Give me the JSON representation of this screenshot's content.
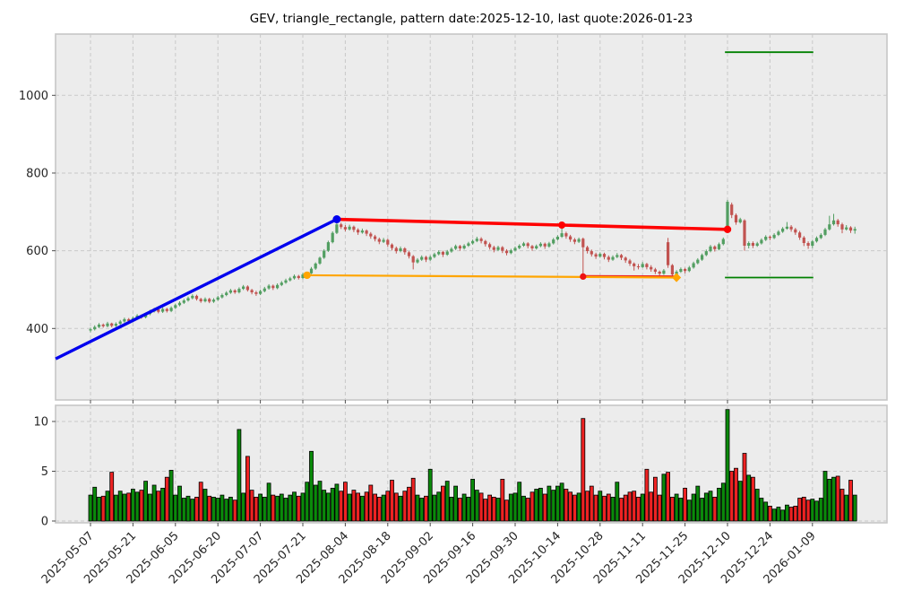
{
  "title": "GEV, triangle_rectangle, pattern date:2025-12-10, last quote:2026-01-23",
  "chart_data": {
    "type": "candlestick_with_volume",
    "symbol": "GEV",
    "pattern": "triangle_rectangle",
    "pattern_date": "2025-12-10",
    "last_quote_date": "2026-01-23",
    "x_axis": {
      "tick_days": [
        0,
        10,
        20,
        30,
        40,
        50,
        60,
        70,
        80,
        90,
        100,
        110,
        120,
        130,
        140,
        150,
        160,
        170
      ],
      "tick_labels": [
        "2025-05-07",
        "2025-05-21",
        "2025-06-05",
        "2025-06-20",
        "2025-07-07",
        "2025-07-21",
        "2025-08-04",
        "2025-08-18",
        "2025-09-02",
        "2025-09-16",
        "2025-09-30",
        "2025-10-14",
        "2025-10-28",
        "2025-11-11",
        "2025-11-25",
        "2025-12-10",
        "2025-12-24",
        "2026-01-09"
      ]
    },
    "price_axis": {
      "ticks": [
        400,
        600,
        800,
        1000
      ],
      "ylim": [
        215,
        1157
      ]
    },
    "volume_axis": {
      "ticks": [
        0,
        5,
        10
      ],
      "ylim": [
        0,
        11.8
      ]
    },
    "candles": [
      [
        395,
        402,
        390,
        398
      ],
      [
        398,
        408,
        395,
        404
      ],
      [
        404,
        414,
        401,
        410
      ],
      [
        410,
        413,
        402,
        406
      ],
      [
        406,
        417,
        403,
        413
      ],
      [
        413,
        415,
        403,
        407
      ],
      [
        407,
        416,
        404,
        412
      ],
      [
        412,
        422,
        409,
        418
      ],
      [
        418,
        428,
        415,
        424
      ],
      [
        424,
        427,
        415,
        419
      ],
      [
        419,
        431,
        416,
        427
      ],
      [
        427,
        437,
        424,
        433
      ],
      [
        433,
        436,
        425,
        429
      ],
      [
        429,
        441,
        426,
        437
      ],
      [
        437,
        448,
        434,
        444
      ],
      [
        444,
        453,
        441,
        449
      ],
      [
        449,
        452,
        439,
        443
      ],
      [
        443,
        454,
        440,
        450
      ],
      [
        450,
        453,
        441,
        445
      ],
      [
        445,
        457,
        442,
        453
      ],
      [
        453,
        464,
        450,
        460
      ],
      [
        460,
        470,
        457,
        466
      ],
      [
        466,
        476,
        463,
        472
      ],
      [
        472,
        482,
        469,
        478
      ],
      [
        478,
        488,
        475,
        484
      ],
      [
        484,
        487,
        472,
        476
      ],
      [
        476,
        479,
        466,
        470
      ],
      [
        470,
        480,
        467,
        476
      ],
      [
        476,
        479,
        465,
        469
      ],
      [
        469,
        478,
        466,
        474
      ],
      [
        474,
        484,
        471,
        480
      ],
      [
        480,
        490,
        477,
        486
      ],
      [
        486,
        496,
        483,
        492
      ],
      [
        492,
        502,
        489,
        498
      ],
      [
        498,
        501,
        489,
        493
      ],
      [
        493,
        506,
        490,
        502
      ],
      [
        502,
        512,
        499,
        508
      ],
      [
        508,
        511,
        495,
        499
      ],
      [
        499,
        502,
        488,
        493
      ],
      [
        493,
        497,
        484,
        489
      ],
      [
        489,
        500,
        486,
        496
      ],
      [
        496,
        507,
        493,
        503
      ],
      [
        503,
        514,
        500,
        510
      ],
      [
        510,
        513,
        499,
        504
      ],
      [
        504,
        516,
        501,
        512
      ],
      [
        512,
        522,
        509,
        518
      ],
      [
        518,
        528,
        515,
        524
      ],
      [
        524,
        533,
        521,
        529
      ],
      [
        529,
        539,
        526,
        535
      ],
      [
        535,
        538,
        526,
        530
      ],
      [
        530,
        543,
        527,
        539
      ],
      [
        539,
        544,
        537,
        542
      ],
      [
        542,
        558,
        540,
        554
      ],
      [
        554,
        570,
        551,
        567
      ],
      [
        567,
        585,
        564,
        582
      ],
      [
        582,
        604,
        579,
        600
      ],
      [
        600,
        626,
        597,
        622
      ],
      [
        622,
        650,
        619,
        646
      ],
      [
        646,
        676,
        643,
        668
      ],
      [
        668,
        672,
        656,
        661
      ],
      [
        661,
        666,
        650,
        655
      ],
      [
        655,
        667,
        652,
        662
      ],
      [
        662,
        665,
        648,
        654
      ],
      [
        654,
        658,
        641,
        647
      ],
      [
        647,
        657,
        644,
        652
      ],
      [
        652,
        655,
        638,
        644
      ],
      [
        644,
        648,
        631,
        637
      ],
      [
        637,
        641,
        624,
        630
      ],
      [
        630,
        634,
        617,
        623
      ],
      [
        623,
        633,
        620,
        628
      ],
      [
        628,
        631,
        610,
        616
      ],
      [
        616,
        619,
        601,
        607
      ],
      [
        607,
        611,
        593,
        599
      ],
      [
        599,
        611,
        596,
        606
      ],
      [
        606,
        609,
        590,
        596
      ],
      [
        596,
        599,
        580,
        586
      ],
      [
        586,
        589,
        552,
        570
      ],
      [
        570,
        581,
        567,
        577
      ],
      [
        577,
        588,
        574,
        584
      ],
      [
        584,
        587,
        571,
        577
      ],
      [
        577,
        588,
        574,
        584
      ],
      [
        584,
        595,
        581,
        591
      ],
      [
        591,
        601,
        588,
        597
      ],
      [
        597,
        600,
        584,
        590
      ],
      [
        590,
        602,
        587,
        598
      ],
      [
        598,
        609,
        595,
        605
      ],
      [
        605,
        616,
        602,
        612
      ],
      [
        612,
        615,
        600,
        606
      ],
      [
        606,
        617,
        603,
        613
      ],
      [
        613,
        623,
        610,
        619
      ],
      [
        619,
        629,
        616,
        625
      ],
      [
        625,
        636,
        622,
        631
      ],
      [
        631,
        635,
        619,
        625
      ],
      [
        625,
        628,
        611,
        617
      ],
      [
        617,
        621,
        603,
        609
      ],
      [
        609,
        613,
        596,
        602
      ],
      [
        602,
        613,
        599,
        609
      ],
      [
        609,
        612,
        594,
        600
      ],
      [
        600,
        604,
        588,
        594
      ],
      [
        594,
        605,
        591,
        601
      ],
      [
        601,
        611,
        598,
        607
      ],
      [
        607,
        617,
        604,
        613
      ],
      [
        613,
        623,
        610,
        619
      ],
      [
        619,
        622,
        606,
        612
      ],
      [
        612,
        615,
        600,
        606
      ],
      [
        606,
        616,
        603,
        612
      ],
      [
        612,
        622,
        609,
        618
      ],
      [
        618,
        621,
        605,
        611
      ],
      [
        611,
        623,
        608,
        619
      ],
      [
        619,
        633,
        616,
        629
      ],
      [
        629,
        640,
        626,
        636
      ],
      [
        636,
        668,
        633,
        645
      ],
      [
        645,
        649,
        631,
        637
      ],
      [
        637,
        641,
        623,
        629
      ],
      [
        629,
        633,
        617,
        623
      ],
      [
        623,
        634,
        620,
        630
      ],
      [
        631,
        634,
        534,
        609
      ],
      [
        609,
        613,
        593,
        599
      ],
      [
        599,
        603,
        585,
        591
      ],
      [
        591,
        595,
        579,
        585
      ],
      [
        585,
        596,
        582,
        592
      ],
      [
        592,
        595,
        578,
        584
      ],
      [
        584,
        588,
        571,
        577
      ],
      [
        577,
        588,
        574,
        584
      ],
      [
        584,
        594,
        581,
        589
      ],
      [
        589,
        592,
        576,
        582
      ],
      [
        582,
        585,
        569,
        575
      ],
      [
        575,
        579,
        561,
        567
      ],
      [
        567,
        570,
        549,
        560
      ],
      [
        560,
        566,
        552,
        558
      ],
      [
        558,
        571,
        556,
        566
      ],
      [
        566,
        569,
        552,
        558
      ],
      [
        558,
        563,
        546,
        552
      ],
      [
        552,
        556,
        540,
        546
      ],
      [
        546,
        549,
        535,
        541
      ],
      [
        541,
        553,
        538,
        549
      ],
      [
        622,
        633,
        556,
        563
      ],
      [
        563,
        566,
        533,
        539
      ],
      [
        539,
        550,
        534,
        546
      ],
      [
        546,
        557,
        543,
        553
      ],
      [
        553,
        556,
        542,
        548
      ],
      [
        548,
        561,
        545,
        557
      ],
      [
        557,
        572,
        554,
        568
      ],
      [
        568,
        581,
        565,
        577
      ],
      [
        577,
        593,
        574,
        589
      ],
      [
        589,
        603,
        586,
        599
      ],
      [
        599,
        615,
        596,
        611
      ],
      [
        611,
        614,
        598,
        604
      ],
      [
        604,
        621,
        601,
        617
      ],
      [
        617,
        634,
        614,
        630
      ],
      [
        655,
        731,
        648,
        726
      ],
      [
        719,
        724,
        684,
        692
      ],
      [
        692,
        696,
        667,
        673
      ],
      [
        673,
        685,
        670,
        681
      ],
      [
        678,
        681,
        600,
        613
      ],
      [
        613,
        624,
        606,
        620
      ],
      [
        620,
        624,
        607,
        613
      ],
      [
        613,
        623,
        610,
        619
      ],
      [
        619,
        632,
        616,
        628
      ],
      [
        628,
        640,
        625,
        636
      ],
      [
        636,
        639,
        627,
        633
      ],
      [
        633,
        645,
        630,
        641
      ],
      [
        641,
        653,
        638,
        649
      ],
      [
        649,
        661,
        646,
        657
      ],
      [
        657,
        674,
        654,
        662
      ],
      [
        662,
        666,
        649,
        655
      ],
      [
        655,
        659,
        641,
        647
      ],
      [
        647,
        651,
        628,
        634
      ],
      [
        634,
        638,
        612,
        620
      ],
      [
        620,
        624,
        605,
        613
      ],
      [
        613,
        628,
        607,
        624
      ],
      [
        624,
        637,
        621,
        633
      ],
      [
        633,
        645,
        630,
        641
      ],
      [
        641,
        659,
        638,
        655
      ],
      [
        655,
        690,
        652,
        668
      ],
      [
        668,
        695,
        665,
        678
      ],
      [
        678,
        682,
        662,
        668
      ],
      [
        668,
        672,
        645,
        655
      ],
      [
        655,
        666,
        652,
        660
      ],
      [
        660,
        663,
        646,
        652
      ],
      [
        652,
        662,
        644,
        656
      ]
    ],
    "volumes": [
      2.6,
      3.4,
      2.4,
      2.5,
      3.0,
      4.9,
      2.6,
      3.0,
      2.7,
      2.8,
      3.2,
      2.9,
      3.1,
      4.0,
      2.7,
      3.6,
      3.0,
      3.3,
      4.4,
      5.1,
      2.6,
      3.5,
      2.3,
      2.5,
      2.2,
      2.4,
      3.9,
      3.2,
      2.5,
      2.4,
      2.3,
      2.6,
      2.2,
      2.4,
      2.1,
      9.2,
      2.8,
      6.5,
      3.1,
      2.4,
      2.7,
      2.4,
      3.8,
      2.6,
      2.5,
      2.7,
      2.3,
      2.6,
      2.9,
      2.5,
      2.8,
      3.9,
      7.0,
      3.6,
      4.0,
      3.1,
      2.8,
      3.3,
      3.7,
      3.0,
      3.9,
      2.7,
      3.1,
      2.8,
      2.5,
      2.9,
      3.6,
      2.7,
      2.4,
      2.6,
      3.0,
      4.1,
      2.8,
      2.5,
      3.0,
      3.4,
      4.3,
      2.6,
      2.3,
      2.5,
      5.2,
      2.6,
      2.9,
      3.5,
      4.0,
      2.4,
      3.5,
      2.3,
      2.7,
      2.4,
      4.2,
      3.1,
      2.8,
      2.2,
      2.6,
      2.4,
      2.3,
      4.2,
      2.1,
      2.7,
      2.8,
      3.9,
      2.5,
      2.3,
      2.9,
      3.2,
      3.3,
      2.7,
      3.5,
      3.1,
      3.5,
      3.8,
      3.2,
      2.9,
      2.6,
      2.8,
      10.3,
      3.0,
      3.5,
      2.6,
      3.0,
      2.5,
      2.7,
      2.4,
      3.9,
      2.3,
      2.6,
      2.9,
      3.0,
      2.4,
      2.7,
      5.2,
      2.9,
      4.4,
      2.6,
      4.7,
      4.9,
      2.4,
      2.7,
      2.3,
      3.3,
      2.1,
      2.7,
      3.5,
      2.3,
      2.8,
      3.0,
      2.4,
      3.3,
      3.8,
      11.2,
      5.0,
      5.3,
      4.0,
      6.8,
      4.6,
      4.4,
      3.2,
      2.3,
      1.9,
      1.5,
      1.2,
      1.4,
      1.1,
      1.6,
      1.4,
      1.5,
      2.3,
      2.4,
      2.1,
      2.2,
      2.0,
      2.3,
      5.0,
      4.2,
      4.4,
      4.5,
      3.2,
      2.6,
      4.1,
      2.6
    ],
    "overlays": {
      "blue_trendline": {
        "from_day": -8.2,
        "from_value": 322,
        "to_day": 58,
        "to_value": 681,
        "color": "#0000ee",
        "width": 3.4
      },
      "red_resistance": {
        "from_day": 58,
        "from_value": 681,
        "to_day": 150,
        "to_value": 655,
        "color": "#ff0000",
        "width": 3.6
      },
      "orange_support": {
        "from_day": 51,
        "from_value": 537,
        "to_day": 138,
        "to_value": 531,
        "color": "#ffa500",
        "width": 2.2
      },
      "red_support_segment": {
        "from_day": 116,
        "from_value": 534.5,
        "to_day": 138,
        "to_value": 533.5,
        "color": "#ee2222",
        "width": 2.6
      },
      "target_upper": {
        "from_day": 149.4,
        "to_day": 170.2,
        "value": 1111,
        "color": "#008000",
        "width": 1.8
      },
      "target_lower": {
        "from_day": 149.4,
        "to_day": 170.2,
        "value": 531,
        "color": "#008000",
        "width": 1.8
      },
      "markers": [
        {
          "day": 58,
          "value": 681,
          "shape": "circle",
          "color": "#0000ee",
          "r": 4.5
        },
        {
          "day": 111,
          "value": 666,
          "shape": "circle",
          "color": "#ff0000",
          "r": 4.0
        },
        {
          "day": 150,
          "value": 655,
          "shape": "circle",
          "color": "#ff0000",
          "r": 4.2
        },
        {
          "day": 116,
          "value": 533.5,
          "shape": "circle",
          "color": "#ee1111",
          "r": 3.6
        },
        {
          "day": 51,
          "value": 537,
          "shape": "circle",
          "color": "#ffa500",
          "r": 4.2
        },
        {
          "day": 138,
          "value": 531,
          "shape": "diamond",
          "color": "#ffa500",
          "r": 5.0
        }
      ]
    },
    "colors": {
      "plot_background": "#ececec",
      "grid": "#c9c9c9",
      "panel_border": "#c6c6c6",
      "candle_up": "#529E61",
      "candle_down": "#C15350",
      "volume_up": "#0a8a0a",
      "volume_down": "#ee2222",
      "volume_edge": "#000000",
      "tick_text": "#262626"
    },
    "legend_position": "none",
    "grid_on": true
  }
}
